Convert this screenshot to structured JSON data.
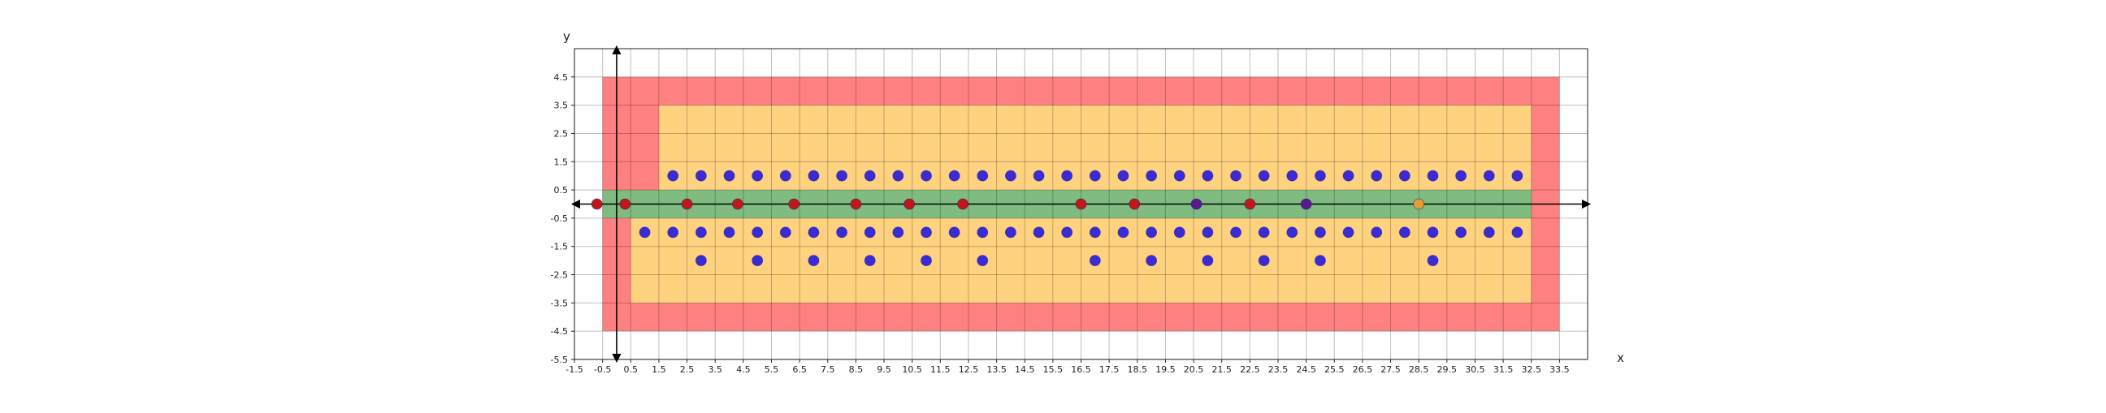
{
  "chart_data": {
    "type": "scatter",
    "title": "",
    "xlabel": "x",
    "ylabel": "y",
    "xlim": [
      -1.5,
      34.5
    ],
    "ylim": [
      -5.5,
      5.5
    ],
    "grid": true,
    "x_ticks": [
      "-1.5",
      "-0.5",
      "0.5",
      "1.5",
      "2.5",
      "3.5",
      "4.5",
      "5.5",
      "6.5",
      "7.5",
      "8.5",
      "9.5",
      "10.5",
      "11.5",
      "12.5",
      "13.5",
      "14.5",
      "15.5",
      "16.5",
      "17.5",
      "18.5",
      "19.5",
      "20.5",
      "21.5",
      "22.5",
      "23.5",
      "24.5",
      "25.5",
      "26.5",
      "27.5",
      "28.5",
      "29.5",
      "30.5",
      "31.5",
      "32.5",
      "33.5"
    ],
    "y_ticks": [
      "-5.5",
      "-4.5",
      "-3.5",
      "-2.5",
      "-1.5",
      "-0.5",
      "0.5",
      "1.5",
      "2.5",
      "3.5",
      "4.5"
    ],
    "regions": [
      {
        "x": [
          -0.5,
          33.5
        ],
        "y": [
          -4.5,
          4.5
        ],
        "color": "#ff8080"
      },
      {
        "x": [
          1.5,
          32.5
        ],
        "y": [
          -0.5,
          3.5
        ],
        "color": "#ffd280"
      },
      {
        "x": [
          0.5,
          32.5
        ],
        "y": [
          -3.5,
          -0.5
        ],
        "color": "#ffd280"
      },
      {
        "x": [
          -0.5,
          32.5
        ],
        "y": [
          -0.5,
          0.5
        ],
        "color": "#80bb80"
      }
    ],
    "series": [
      {
        "color": "#3a2bd6",
        "points": [
          [
            2,
            1
          ],
          [
            3,
            1
          ],
          [
            4,
            1
          ],
          [
            5,
            1
          ],
          [
            6,
            1
          ],
          [
            7,
            1
          ],
          [
            8,
            1
          ],
          [
            9,
            1
          ],
          [
            10,
            1
          ],
          [
            11,
            1
          ],
          [
            12,
            1
          ],
          [
            13,
            1
          ],
          [
            14,
            1
          ],
          [
            15,
            1
          ],
          [
            16,
            1
          ],
          [
            17,
            1
          ],
          [
            18,
            1
          ],
          [
            19,
            1
          ],
          [
            20,
            1
          ],
          [
            21,
            1
          ],
          [
            22,
            1
          ],
          [
            23,
            1
          ],
          [
            24,
            1
          ],
          [
            25,
            1
          ],
          [
            26,
            1
          ],
          [
            27,
            1
          ],
          [
            28,
            1
          ],
          [
            29,
            1
          ],
          [
            30,
            1
          ],
          [
            31,
            1
          ],
          [
            32,
            1
          ],
          [
            1,
            -1
          ],
          [
            2,
            -1
          ],
          [
            3,
            -1
          ],
          [
            4,
            -1
          ],
          [
            5,
            -1
          ],
          [
            6,
            -1
          ],
          [
            7,
            -1
          ],
          [
            8,
            -1
          ],
          [
            9,
            -1
          ],
          [
            10,
            -1
          ],
          [
            11,
            -1
          ],
          [
            12,
            -1
          ],
          [
            13,
            -1
          ],
          [
            14,
            -1
          ],
          [
            15,
            -1
          ],
          [
            16,
            -1
          ],
          [
            17,
            -1
          ],
          [
            18,
            -1
          ],
          [
            19,
            -1
          ],
          [
            20,
            -1
          ],
          [
            21,
            -1
          ],
          [
            22,
            -1
          ],
          [
            23,
            -1
          ],
          [
            24,
            -1
          ],
          [
            25,
            -1
          ],
          [
            26,
            -1
          ],
          [
            27,
            -1
          ],
          [
            28,
            -1
          ],
          [
            29,
            -1
          ],
          [
            30,
            -1
          ],
          [
            31,
            -1
          ],
          [
            32,
            -1
          ],
          [
            3,
            -2
          ],
          [
            5,
            -2
          ],
          [
            7,
            -2
          ],
          [
            9,
            -2
          ],
          [
            11,
            -2
          ],
          [
            13,
            -2
          ],
          [
            17,
            -2
          ],
          [
            19,
            -2
          ],
          [
            21,
            -2
          ],
          [
            23,
            -2
          ],
          [
            25,
            -2
          ],
          [
            29,
            -2
          ]
        ]
      },
      {
        "color": "#c01818",
        "points": [
          [
            -0.7,
            0
          ],
          [
            0.3,
            0
          ],
          [
            2.5,
            0
          ],
          [
            4.3,
            0
          ],
          [
            6.3,
            0
          ],
          [
            8.5,
            0
          ],
          [
            10.4,
            0
          ],
          [
            12.3,
            0
          ],
          [
            16.5,
            0
          ],
          [
            18.4,
            0
          ],
          [
            22.5,
            0
          ]
        ]
      },
      {
        "color": "#5a1a8a",
        "points": [
          [
            20.6,
            0
          ],
          [
            24.5,
            0
          ]
        ]
      },
      {
        "color": "#e0a030",
        "points": [
          [
            28.5,
            0
          ]
        ]
      }
    ]
  }
}
